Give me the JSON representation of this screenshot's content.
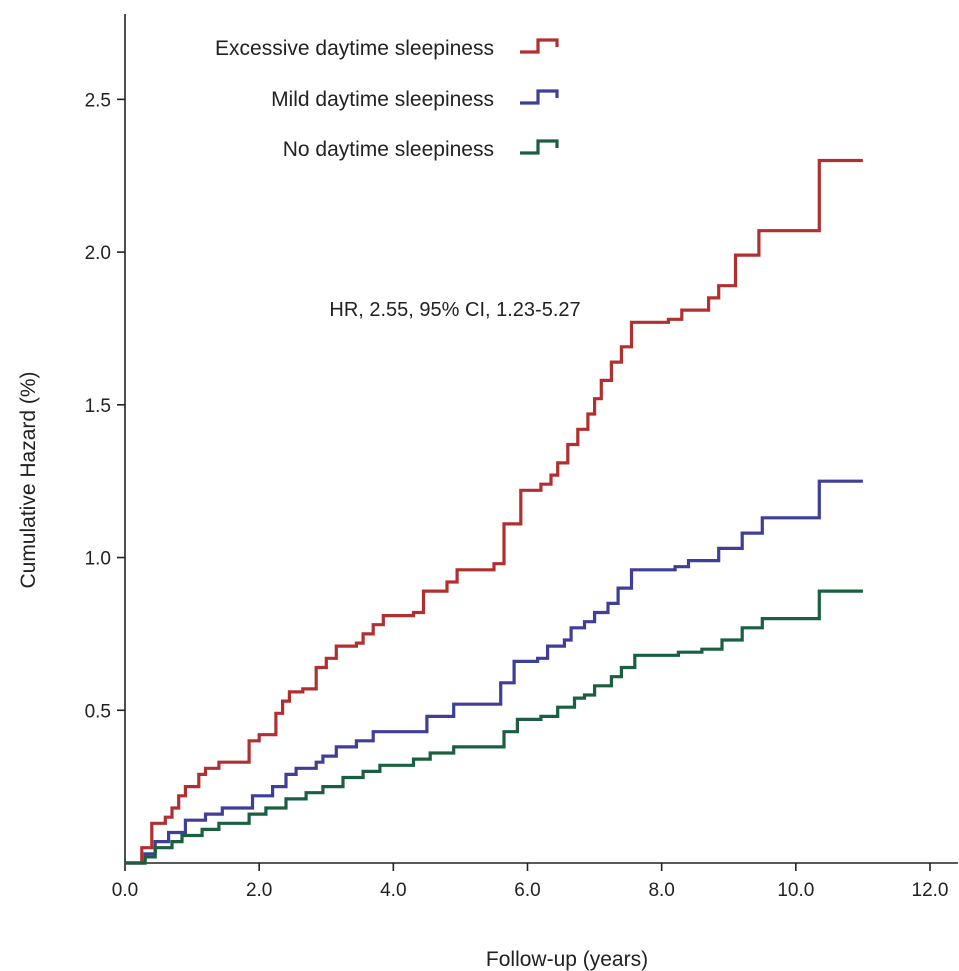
{
  "chart_data": {
    "type": "line",
    "step": true,
    "xlabel": "Follow-up (years)",
    "ylabel": "Cumulative Hazard (%)",
    "xlim": [
      0,
      12
    ],
    "ylim": [
      0,
      2.75
    ],
    "xticks": [
      0,
      2,
      4,
      6,
      8,
      10,
      12
    ],
    "xtick_labels": [
      "0.0",
      "2.0",
      "4.0",
      "6.0",
      "8.0",
      "10.0",
      "12.0"
    ],
    "yticks": [
      0.5,
      1.0,
      1.5,
      2.0,
      2.5
    ],
    "ytick_labels": [
      "0.5",
      "1.0",
      "1.5",
      "2.0",
      "2.5"
    ],
    "grid": false,
    "legend_position": "top-center",
    "annotation": "HR, 2.55, 95% CI, 1.23-5.27",
    "series": [
      {
        "name": "Excessive daytime  sleepiness",
        "color": "#b03030",
        "points": [
          [
            0,
            0
          ],
          [
            0.25,
            0.05
          ],
          [
            0.4,
            0.13
          ],
          [
            0.6,
            0.15
          ],
          [
            0.7,
            0.18
          ],
          [
            0.8,
            0.22
          ],
          [
            0.9,
            0.25
          ],
          [
            1.1,
            0.29
          ],
          [
            1.2,
            0.31
          ],
          [
            1.4,
            0.33
          ],
          [
            1.85,
            0.4
          ],
          [
            2.0,
            0.42
          ],
          [
            2.25,
            0.49
          ],
          [
            2.35,
            0.53
          ],
          [
            2.45,
            0.56
          ],
          [
            2.65,
            0.57
          ],
          [
            2.85,
            0.64
          ],
          [
            3.0,
            0.67
          ],
          [
            3.15,
            0.71
          ],
          [
            3.45,
            0.72
          ],
          [
            3.55,
            0.75
          ],
          [
            3.7,
            0.78
          ],
          [
            3.85,
            0.81
          ],
          [
            4.3,
            0.82
          ],
          [
            4.45,
            0.89
          ],
          [
            4.8,
            0.92
          ],
          [
            4.95,
            0.96
          ],
          [
            5.5,
            0.98
          ],
          [
            5.65,
            1.11
          ],
          [
            5.9,
            1.22
          ],
          [
            6.2,
            1.24
          ],
          [
            6.35,
            1.27
          ],
          [
            6.45,
            1.31
          ],
          [
            6.6,
            1.37
          ],
          [
            6.75,
            1.42
          ],
          [
            6.9,
            1.47
          ],
          [
            7.0,
            1.52
          ],
          [
            7.1,
            1.58
          ],
          [
            7.25,
            1.64
          ],
          [
            7.4,
            1.69
          ],
          [
            7.55,
            1.77
          ],
          [
            8.1,
            1.78
          ],
          [
            8.3,
            1.81
          ],
          [
            8.7,
            1.85
          ],
          [
            8.85,
            1.89
          ],
          [
            9.1,
            1.99
          ],
          [
            9.45,
            2.07
          ],
          [
            10.35,
            2.3
          ],
          [
            11,
            2.3
          ]
        ]
      },
      {
        "name": "Mild daytime sleepiness",
        "color": "#3f3f98",
        "points": [
          [
            0,
            0
          ],
          [
            0.3,
            0.03
          ],
          [
            0.45,
            0.07
          ],
          [
            0.65,
            0.1
          ],
          [
            0.9,
            0.14
          ],
          [
            1.2,
            0.16
          ],
          [
            1.45,
            0.18
          ],
          [
            1.9,
            0.22
          ],
          [
            2.2,
            0.25
          ],
          [
            2.4,
            0.29
          ],
          [
            2.55,
            0.31
          ],
          [
            2.85,
            0.33
          ],
          [
            2.95,
            0.35
          ],
          [
            3.15,
            0.38
          ],
          [
            3.45,
            0.4
          ],
          [
            3.7,
            0.43
          ],
          [
            4.5,
            0.48
          ],
          [
            4.9,
            0.52
          ],
          [
            5.6,
            0.59
          ],
          [
            5.8,
            0.66
          ],
          [
            6.15,
            0.67
          ],
          [
            6.3,
            0.71
          ],
          [
            6.55,
            0.73
          ],
          [
            6.65,
            0.77
          ],
          [
            6.85,
            0.79
          ],
          [
            7.0,
            0.82
          ],
          [
            7.2,
            0.85
          ],
          [
            7.35,
            0.9
          ],
          [
            7.55,
            0.96
          ],
          [
            8.2,
            0.97
          ],
          [
            8.4,
            0.99
          ],
          [
            8.85,
            1.03
          ],
          [
            9.2,
            1.08
          ],
          [
            9.5,
            1.13
          ],
          [
            10.35,
            1.25
          ],
          [
            11,
            1.25
          ]
        ]
      },
      {
        "name": "No daytime sleepiness",
        "color": "#1a6040",
        "points": [
          [
            0,
            0
          ],
          [
            0.3,
            0.02
          ],
          [
            0.45,
            0.05
          ],
          [
            0.7,
            0.07
          ],
          [
            0.85,
            0.09
          ],
          [
            1.15,
            0.11
          ],
          [
            1.4,
            0.13
          ],
          [
            1.85,
            0.16
          ],
          [
            2.1,
            0.18
          ],
          [
            2.4,
            0.21
          ],
          [
            2.7,
            0.23
          ],
          [
            2.95,
            0.25
          ],
          [
            3.25,
            0.28
          ],
          [
            3.55,
            0.3
          ],
          [
            3.8,
            0.32
          ],
          [
            4.3,
            0.34
          ],
          [
            4.55,
            0.36
          ],
          [
            4.9,
            0.38
          ],
          [
            5.65,
            0.43
          ],
          [
            5.85,
            0.47
          ],
          [
            6.2,
            0.48
          ],
          [
            6.45,
            0.51
          ],
          [
            6.7,
            0.54
          ],
          [
            6.85,
            0.55
          ],
          [
            7.0,
            0.58
          ],
          [
            7.25,
            0.61
          ],
          [
            7.4,
            0.64
          ],
          [
            7.6,
            0.68
          ],
          [
            8.25,
            0.69
          ],
          [
            8.6,
            0.7
          ],
          [
            8.9,
            0.73
          ],
          [
            9.2,
            0.77
          ],
          [
            9.5,
            0.8
          ],
          [
            10.35,
            0.89
          ],
          [
            11,
            0.89
          ]
        ]
      }
    ]
  }
}
